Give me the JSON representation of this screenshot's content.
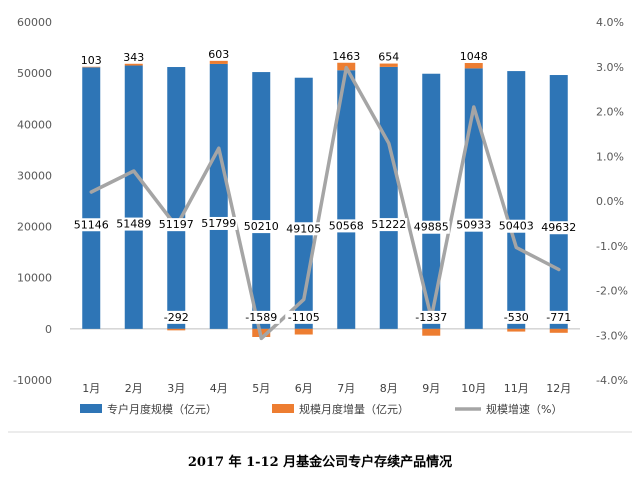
{
  "chart_data": {
    "type": "bar",
    "title": "2017 年 1-12 月基金公司专户存续产品情况",
    "categories": [
      "1月",
      "2月",
      "3月",
      "4月",
      "5月",
      "6月",
      "7月",
      "8月",
      "9月",
      "10月",
      "11月",
      "12月"
    ],
    "series": [
      {
        "name": "专户月度规模（亿元）",
        "kind": "bar",
        "axis": "left",
        "color": "#2E75B6",
        "values": [
          51146,
          51489,
          51197,
          51799,
          50210,
          49105,
          50568,
          51222,
          49885,
          50933,
          50403,
          49632
        ]
      },
      {
        "name": "规模月度增量（亿元）",
        "kind": "bar-stack",
        "axis": "left",
        "color": "#ED7D31",
        "values": [
          103,
          343,
          -292,
          603,
          -1589,
          -1105,
          1463,
          654,
          -1337,
          1048,
          -530,
          -771
        ]
      },
      {
        "name": "规模增速（%）",
        "kind": "line",
        "axis": "right",
        "color": "#A5A5A5",
        "values": [
          0.2,
          0.67,
          -0.57,
          1.18,
          -3.07,
          -2.2,
          2.98,
          1.29,
          -2.61,
          2.1,
          -1.04,
          -1.53
        ]
      }
    ],
    "y_left": {
      "min": -10000,
      "max": 60000,
      "step": 10000,
      "ticks": [
        "-10000",
        "0",
        "10000",
        "20000",
        "30000",
        "40000",
        "50000",
        "60000"
      ]
    },
    "y_right": {
      "min": -4.0,
      "max": 4.0,
      "step": 1.0,
      "ticks": [
        "-4.0%",
        "-3.0%",
        "-2.0%",
        "-1.0%",
        "0.0%",
        "1.0%",
        "2.0%",
        "3.0%",
        "4.0%"
      ]
    },
    "grid": false,
    "legend_position": "bottom"
  }
}
